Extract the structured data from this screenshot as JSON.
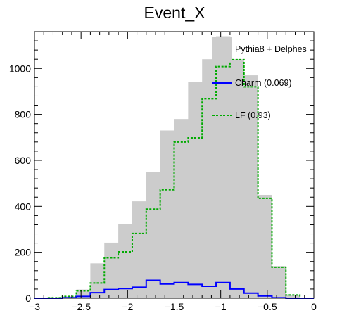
{
  "chart_data": {
    "type": "bar",
    "title": "Event_X",
    "xlabel": "",
    "ylabel": "",
    "xlim": [
      -3,
      0
    ],
    "ylim": [
      0,
      1160
    ],
    "x_ticks": [
      -3,
      -2.5,
      -2,
      -1.5,
      -1,
      -0.5,
      0
    ],
    "x_tick_labels": [
      "−3",
      "−2.5",
      "−2",
      "−1.5",
      "−1",
      "−0.5",
      "0"
    ],
    "y_ticks": [
      0,
      200,
      400,
      600,
      800,
      1000
    ],
    "y_tick_labels": [
      "0",
      "200",
      "400",
      "600",
      "800",
      "1000"
    ],
    "bin_edges": [
      -3.0,
      -2.85,
      -2.7,
      -2.55,
      -2.4,
      -2.25,
      -2.1,
      -1.95,
      -1.8,
      -1.65,
      -1.5,
      -1.35,
      -1.2,
      -1.05,
      -0.9,
      -0.75,
      -0.6,
      -0.45,
      -0.3,
      -0.15,
      0.0
    ],
    "series": [
      {
        "name": "Pythia8 + Delphes",
        "style": "filled",
        "color": "#cccccc",
        "values": [
          0,
          2,
          8,
          38,
          152,
          242,
          322,
          422,
          548,
          730,
          780,
          940,
          1040,
          1140,
          1040,
          970,
          450,
          140,
          12,
          0
        ]
      },
      {
        "name": "Charm (0.069)",
        "style": "solid-line",
        "color": "#0000ff",
        "values": [
          0,
          0,
          2,
          8,
          24,
          38,
          42,
          48,
          78,
          62,
          68,
          60,
          52,
          68,
          40,
          22,
          10,
          2,
          0,
          0
        ]
      },
      {
        "name": "LF (0.93)",
        "style": "dotted-line",
        "color": "#00aa00",
        "values": [
          0,
          2,
          8,
          32,
          66,
          176,
          202,
          282,
          388,
          472,
          680,
          698,
          868,
          1008,
          1038,
          920,
          435,
          135,
          14,
          0
        ]
      }
    ],
    "legend_position": "top-right",
    "grid": false
  }
}
